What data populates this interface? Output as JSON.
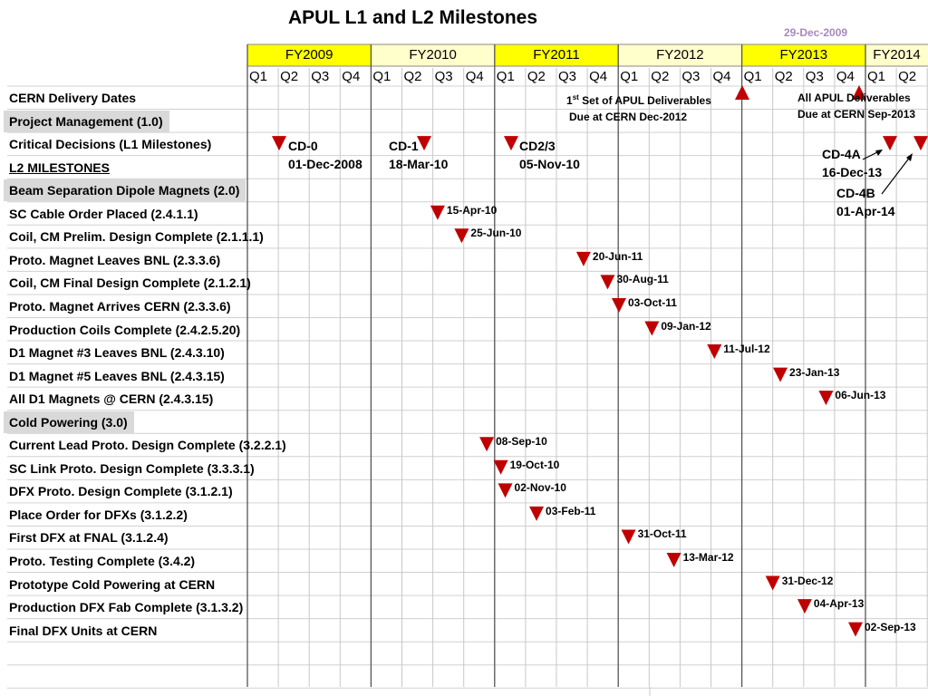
{
  "header": {
    "title": "APUL L1 and L2 Milestones",
    "date_stamp": "29-Dec-2009"
  },
  "colors": {
    "fy_highlight": "#ffff00",
    "fy_plain": "#ffffcc",
    "marker": "#c00000",
    "section_bg": "#d9d9d9",
    "date_stamp": "#a888c0"
  },
  "chart_data": {
    "type": "table",
    "title": "APUL L1 and L2 Milestones",
    "fiscal_years": [
      {
        "label": "FY2009",
        "highlight": true
      },
      {
        "label": "FY2010",
        "highlight": false
      },
      {
        "label": "FY2011",
        "highlight": true
      },
      {
        "label": "FY2012",
        "highlight": false
      },
      {
        "label": "FY2013",
        "highlight": true
      },
      {
        "label": "FY2014",
        "highlight": false
      }
    ],
    "quarters": [
      "Q1",
      "Q2",
      "Q3",
      "Q4",
      "Q1",
      "Q2",
      "Q3",
      "Q4",
      "Q1",
      "Q2",
      "Q3",
      "Q4",
      "Q1",
      "Q2",
      "Q3",
      "Q4",
      "Q1",
      "Q2",
      "Q3",
      "Q4",
      "Q1",
      "Q2"
    ],
    "rows": [
      {
        "label": "CERN Delivery Dates",
        "style": "plain"
      },
      {
        "label": "Project Management (1.0)",
        "style": "section"
      },
      {
        "label": "Critical Decisions (L1 Milestones)",
        "style": "plain"
      },
      {
        "label": "L2 MILESTONES",
        "style": "underline"
      },
      {
        "label": "Beam Separation Dipole Magnets (2.0)",
        "style": "section"
      },
      {
        "label": "SC Cable Order Placed (2.4.1.1)",
        "style": "plain",
        "milestone": "15-Apr-10"
      },
      {
        "label": "Coil, CM Prelim. Design Complete (2.1.1.1)",
        "style": "plain",
        "milestone": "25-Jun-10"
      },
      {
        "label": "Proto. Magnet Leaves BNL (2.3.3.6)",
        "style": "plain",
        "milestone": "20-Jun-11"
      },
      {
        "label": "Coil, CM Final Design Complete (2.1.2.1)",
        "style": "plain",
        "milestone": "30-Aug-11"
      },
      {
        "label": "Proto. Magnet Arrives CERN (2.3.3.6)",
        "style": "plain",
        "milestone": "03-Oct-11"
      },
      {
        "label": "Production Coils Complete (2.4.2.5.20)",
        "style": "plain",
        "milestone": "09-Jan-12"
      },
      {
        "label": "D1 Magnet #3 Leaves BNL (2.4.3.10)",
        "style": "plain",
        "milestone": "11-Jul-12"
      },
      {
        "label": "D1 Magnet #5 Leaves BNL (2.4.3.15)",
        "style": "plain",
        "milestone": "23-Jan-13"
      },
      {
        "label": "All D1 Magnets @ CERN (2.4.3.15)",
        "style": "plain",
        "milestone": "06-Jun-13"
      },
      {
        "label": "Cold Powering  (3.0)",
        "style": "section"
      },
      {
        "label": "Current Lead Proto. Design Complete (3.2.2.1)",
        "style": "plain",
        "milestone": "08-Sep-10"
      },
      {
        "label": "SC Link Proto. Design Complete (3.3.3.1)",
        "style": "plain",
        "milestone": "19-Oct-10"
      },
      {
        "label": "DFX Proto. Design Complete (3.1.2.1)",
        "style": "plain",
        "milestone": "02-Nov-10"
      },
      {
        "label": "Place Order for DFXs (3.1.2.2)",
        "style": "plain",
        "milestone": "03-Feb-11"
      },
      {
        "label": "First DFX at FNAL (3.1.2.4)",
        "style": "plain",
        "milestone": "31-Oct-11"
      },
      {
        "label": "Proto. Testing Complete (3.4.2)",
        "style": "plain",
        "milestone": "13-Mar-12"
      },
      {
        "label": "Prototype Cold Powering at CERN",
        "style": "plain",
        "milestone": "31-Dec-12"
      },
      {
        "label": "Production DFX Fab Complete (3.1.3.2)",
        "style": "plain",
        "milestone": "04-Apr-13"
      },
      {
        "label": "Final DFX Units at CERN",
        "style": "plain",
        "milestone": "02-Sep-13"
      }
    ],
    "critical_decisions": [
      {
        "name": "CD-0",
        "date": "01-Dec-2008"
      },
      {
        "name": "CD-1",
        "date": "18-Mar-10"
      },
      {
        "name": "CD2/3",
        "date": "05-Nov-10"
      },
      {
        "name": "CD-4A",
        "date": "16-Dec-13"
      },
      {
        "name": "CD-4B",
        "date": "01-Apr-14"
      }
    ],
    "cern_deliveries": [
      {
        "note_line1": "Set of APUL Deliverables",
        "note_prefix": "1",
        "note_sup": "st",
        "note_line2": "Due at CERN Dec-2012",
        "date": "Dec-2012"
      },
      {
        "note": "All APUL Deliverables Due at CERN Sep-2013",
        "date": "Sep-2013"
      }
    ]
  }
}
